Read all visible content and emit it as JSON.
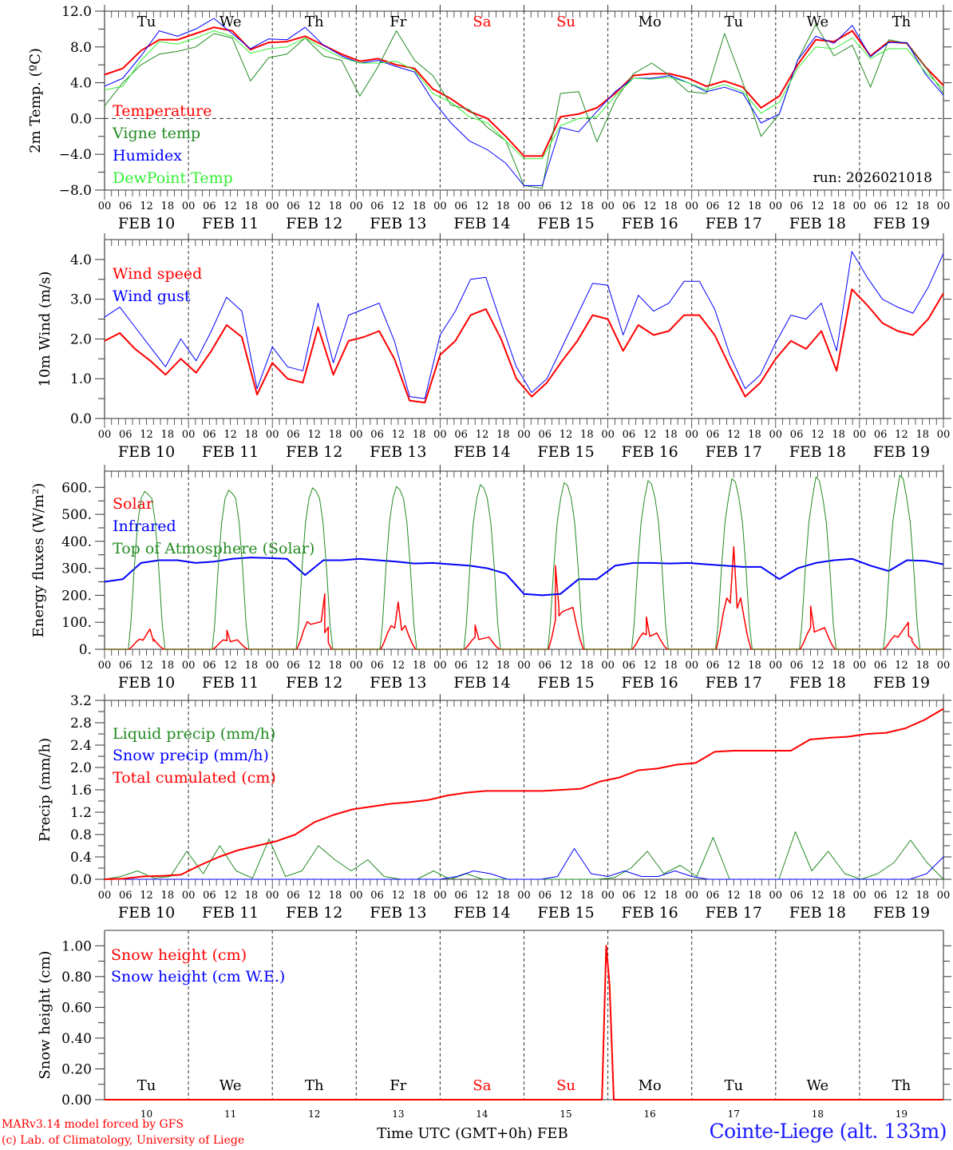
{
  "chart_data": [
    {
      "type": "line",
      "id": "temp",
      "ylabel": "2m Temp. (ºC)",
      "ylim": [
        -8,
        12
      ],
      "yticks": [
        "12.0",
        "8.0",
        "4.0",
        "0.0",
        "−4.0",
        "−8.0"
      ],
      "ytick_values": [
        12,
        8,
        4,
        0,
        -4,
        -8
      ],
      "zero_line": true,
      "annotation": "run: 2026021018",
      "day_labels": [
        "Tu",
        "We",
        "Th",
        "Fr",
        "Sa",
        "Su",
        "Mo",
        "Tu",
        "We",
        "Th"
      ],
      "x_hours": "every 6h from FEB 10 00 to FEB 20 00",
      "series": [
        {
          "name": "Temperature",
          "color": "#ff0000",
          "width": 2,
          "values": [
            4.9,
            5.6,
            7.6,
            8.8,
            8.8,
            9.5,
            10.2,
            9.8,
            7.7,
            8.5,
            8.6,
            9.2,
            8.2,
            7.2,
            6.4,
            6.7,
            6.0,
            5.6,
            3.3,
            2.2,
            0.8,
            0.0,
            -2.0,
            -4.2,
            -4.2,
            0.2,
            0.5,
            1.2,
            2.8,
            4.8,
            5.0,
            5.0,
            4.5,
            3.6,
            4.2,
            3.5,
            1.2,
            2.5,
            6.0,
            8.8,
            8.6,
            9.8,
            7.0,
            8.6,
            8.4,
            5.8,
            3.7
          ]
        },
        {
          "name": "Vigne temp",
          "color": "#228b22",
          "width": 1,
          "values": [
            1.4,
            4.0,
            6.0,
            7.2,
            7.5,
            8.0,
            9.5,
            9.0,
            4.2,
            6.8,
            7.2,
            9.0,
            7.0,
            6.5,
            2.5,
            5.8,
            9.8,
            6.5,
            4.8,
            1.5,
            1.0,
            -1.0,
            -2.5,
            -7.5,
            -7.8,
            2.8,
            3.0,
            -2.6,
            2.0,
            5.0,
            6.2,
            4.8,
            3.0,
            2.8,
            9.5,
            4.0,
            -2.0,
            0.5,
            6.5,
            10.5,
            7.0,
            8.2,
            3.5,
            8.8,
            8.4,
            5.8,
            2.8
          ]
        },
        {
          "name": "Humidex",
          "color": "#0000ff",
          "width": 1,
          "values": [
            3.6,
            4.5,
            7.0,
            9.8,
            9.2,
            10.0,
            11.2,
            9.5,
            7.8,
            8.9,
            8.8,
            10.2,
            8.2,
            7.0,
            6.2,
            6.5,
            5.8,
            5.2,
            2.0,
            -0.5,
            -2.5,
            -3.5,
            -5.0,
            -7.5,
            -7.5,
            -1.0,
            -1.5,
            0.8,
            3.0,
            4.5,
            4.5,
            4.8,
            4.0,
            3.0,
            3.5,
            2.8,
            -0.5,
            0.5,
            6.5,
            9.2,
            8.4,
            10.4,
            6.9,
            8.5,
            8.5,
            5.0,
            2.6
          ]
        },
        {
          "name": "DewPoint Temp",
          "color": "#33ee33",
          "width": 1,
          "values": [
            3.2,
            3.6,
            6.5,
            8.6,
            8.3,
            9.0,
            9.8,
            9.2,
            7.3,
            7.8,
            8.0,
            9.0,
            7.8,
            6.8,
            6.2,
            6.2,
            6.4,
            5.4,
            2.8,
            1.8,
            0.2,
            -0.5,
            -2.5,
            -4.5,
            -4.5,
            -0.8,
            0.0,
            0.2,
            2.5,
            4.5,
            4.4,
            4.6,
            4.0,
            3.2,
            3.8,
            3.0,
            0.6,
            1.8,
            5.6,
            8.0,
            7.8,
            9.0,
            6.7,
            7.8,
            7.8,
            5.2,
            3.3
          ]
        }
      ]
    },
    {
      "type": "line",
      "id": "wind",
      "ylabel": "10m Wind (m/s)",
      "ylim": [
        0,
        4.5
      ],
      "yticks": [
        "4.0",
        "3.0",
        "2.0",
        "1.0",
        "0.0"
      ],
      "ytick_values": [
        4,
        3,
        2,
        1,
        0
      ],
      "series": [
        {
          "name": "Wind speed",
          "color": "#ff0000",
          "width": 2,
          "values": [
            1.95,
            2.15,
            1.75,
            1.45,
            1.1,
            1.5,
            1.15,
            1.7,
            2.35,
            2.05,
            0.6,
            1.4,
            1.0,
            0.9,
            2.3,
            1.1,
            1.95,
            2.05,
            2.2,
            1.5,
            0.45,
            0.4,
            1.6,
            1.95,
            2.6,
            2.75,
            2.0,
            1.0,
            0.55,
            0.9,
            1.45,
            1.95,
            2.6,
            2.5,
            1.7,
            2.35,
            2.1,
            2.2,
            2.6,
            2.6,
            2.1,
            1.3,
            0.55,
            0.9,
            1.5,
            1.95,
            1.75,
            2.2,
            1.2,
            3.25,
            2.85,
            2.4,
            2.2,
            2.1,
            2.5,
            3.15
          ]
        },
        {
          "name": "Wind gust",
          "color": "#0000ff",
          "width": 1,
          "values": [
            2.55,
            2.8,
            2.3,
            1.8,
            1.3,
            2.0,
            1.45,
            2.2,
            3.05,
            2.7,
            0.75,
            1.8,
            1.3,
            1.2,
            2.9,
            1.4,
            2.6,
            2.75,
            2.9,
            1.95,
            0.55,
            0.5,
            2.1,
            2.7,
            3.5,
            3.55,
            2.4,
            1.3,
            0.65,
            1.0,
            1.8,
            2.6,
            3.4,
            3.35,
            2.1,
            3.1,
            2.7,
            2.9,
            3.45,
            3.45,
            2.75,
            1.6,
            0.75,
            1.1,
            1.9,
            2.6,
            2.5,
            2.9,
            1.7,
            4.2,
            3.55,
            3.0,
            2.8,
            2.65,
            3.3,
            4.15
          ]
        }
      ]
    },
    {
      "type": "line",
      "id": "energy",
      "ylabel": "Energy fluxes (W/m²)",
      "ylim": [
        0,
        660
      ],
      "yticks": [
        "600.",
        "500.",
        "400.",
        "300.",
        "200.",
        "100.",
        "0."
      ],
      "ytick_values": [
        600,
        500,
        400,
        300,
        200,
        100,
        0
      ],
      "series": [
        {
          "name": "Solar",
          "color": "#ff0000",
          "width": 1.5,
          "peaks": [
            [
              10,
              13,
              75
            ],
            [
              11,
              11,
              70
            ],
            [
              12,
              15,
              205
            ],
            [
              13,
              12,
              175
            ],
            [
              14,
              10,
              90
            ],
            [
              15,
              9,
              310
            ],
            [
              16,
              11,
              120
            ],
            [
              17,
              12,
              380
            ],
            [
              18,
              10,
              160
            ],
            [
              19,
              14,
              100
            ]
          ]
        },
        {
          "name": "Infrared",
          "color": "#0000ff",
          "width": 2,
          "values": [
            250,
            260,
            320,
            330,
            330,
            320,
            325,
            335,
            340,
            338,
            335,
            275,
            330,
            330,
            335,
            330,
            325,
            318,
            320,
            315,
            310,
            300,
            280,
            205,
            200,
            205,
            260,
            260,
            310,
            320,
            320,
            318,
            320,
            315,
            310,
            305,
            305,
            260,
            300,
            320,
            330,
            335,
            310,
            290,
            330,
            328,
            315
          ]
        },
        {
          "name": "Top of Atmosphere (Solar)",
          "color": "#228b22",
          "width": 1,
          "toa_peaks": [
            585,
            590,
            598,
            603,
            610,
            618,
            625,
            632,
            638,
            645
          ]
        }
      ]
    },
    {
      "type": "line",
      "id": "precip",
      "ylabel": "Precip (mm/h)",
      "ylim": [
        0,
        3.2
      ],
      "yticks": [
        "3.2",
        "2.8",
        "2.4",
        "2.0",
        "1.6",
        "1.2",
        "0.8",
        "0.4",
        "0.0"
      ],
      "ytick_values": [
        3.2,
        2.8,
        2.4,
        2.0,
        1.6,
        1.2,
        0.8,
        0.4,
        0.0
      ],
      "series": [
        {
          "name": "Liquid precip (mm/h)",
          "color": "#228b22",
          "width": 1,
          "values": [
            0,
            0.05,
            0.15,
            0.02,
            0.05,
            0.5,
            0.1,
            0.6,
            0.15,
            0.02,
            0.72,
            0.05,
            0.15,
            0.6,
            0.35,
            0.15,
            0.35,
            0.05,
            0,
            0,
            0.15,
            0,
            0.1,
            0.0,
            0,
            0,
            0,
            0,
            0,
            0,
            0,
            0.03,
            0.2,
            0.5,
            0.1,
            0.25,
            0.05,
            0.75,
            0.0,
            0,
            0,
            0,
            0.85,
            0.15,
            0.5,
            0.1,
            0.0,
            0.1,
            0.3,
            0.7,
            0.3,
            0.0
          ]
        },
        {
          "name": "Snow precip (mm/h)",
          "color": "#0000ff",
          "width": 1,
          "values": [
            0,
            0,
            0,
            0,
            0,
            0,
            0,
            0,
            0,
            0,
            0,
            0,
            0,
            0,
            0,
            0,
            0,
            0,
            0,
            0,
            0,
            0.05,
            0.15,
            0.1,
            0,
            0,
            0,
            0.05,
            0.55,
            0.1,
            0.05,
            0.15,
            0.05,
            0.05,
            0.15,
            0.05,
            0,
            0,
            0,
            0,
            0,
            0,
            0,
            0,
            0,
            0,
            0,
            0.0,
            0.0,
            0.1,
            0.4
          ]
        },
        {
          "name": "Total cumulated (cm)",
          "color": "#ff0000",
          "width": 2,
          "values": [
            0,
            0.01,
            0.05,
            0.06,
            0.08,
            0.25,
            0.4,
            0.52,
            0.6,
            0.68,
            0.8,
            1.02,
            1.15,
            1.25,
            1.3,
            1.35,
            1.38,
            1.42,
            1.5,
            1.55,
            1.58,
            1.58,
            1.58,
            1.58,
            1.6,
            1.62,
            1.75,
            1.82,
            1.95,
            1.98,
            2.05,
            2.08,
            2.28,
            2.3,
            2.3,
            2.3,
            2.3,
            2.5,
            2.53,
            2.55,
            2.6,
            2.62,
            2.7,
            2.85,
            3.05
          ]
        }
      ]
    },
    {
      "type": "line",
      "id": "snow",
      "ylabel": "Snow height (cm)",
      "ylim": [
        0,
        1.1
      ],
      "yticks": [
        "1.00",
        "0.80",
        "0.60",
        "0.40",
        "0.20",
        "0.00"
      ],
      "ytick_values": [
        1.0,
        0.8,
        0.6,
        0.4,
        0.2,
        0.0
      ],
      "xlabel": "Time UTC (GMT+0h) FEB",
      "day_numbers": [
        "10",
        "11",
        "12",
        "13",
        "14",
        "15",
        "16",
        "17",
        "18",
        "19"
      ],
      "day_labels": [
        "Tu",
        "We",
        "Th",
        "Fr",
        "Sa",
        "Su",
        "Mo",
        "Tu",
        "We",
        "Th"
      ],
      "series": [
        {
          "name": "Snow height (cm)",
          "color": "#ff0000",
          "width": 2,
          "points": [
            [
              0,
              0
            ],
            [
              5.93,
              0
            ],
            [
              5.98,
              1.0
            ],
            [
              6.02,
              0.75
            ],
            [
              6.07,
              0
            ],
            [
              10,
              0
            ]
          ]
        },
        {
          "name": "Snow height (cm W.E.)",
          "color": "#0000ff",
          "width": 1,
          "points": []
        }
      ]
    }
  ],
  "x_axis": {
    "hour_ticks": [
      "00",
      "06",
      "12",
      "18"
    ],
    "final_hour": "00",
    "dates": [
      "FEB 10",
      "FEB 11",
      "FEB 12",
      "FEB 13",
      "FEB 14",
      "FEB 15",
      "FEB 16",
      "FEB 17",
      "FEB 18",
      "FEB 19"
    ],
    "weekend_color": "#ff0000",
    "weekend_days": [
      "Sa",
      "Su"
    ]
  },
  "footer": {
    "credit_line1": "MARv3.14 model forced by GFS",
    "credit_line2": "(c) Lab. of Climatology, University of Liege",
    "station": "Cointe-Liege (alt. 133m)"
  }
}
